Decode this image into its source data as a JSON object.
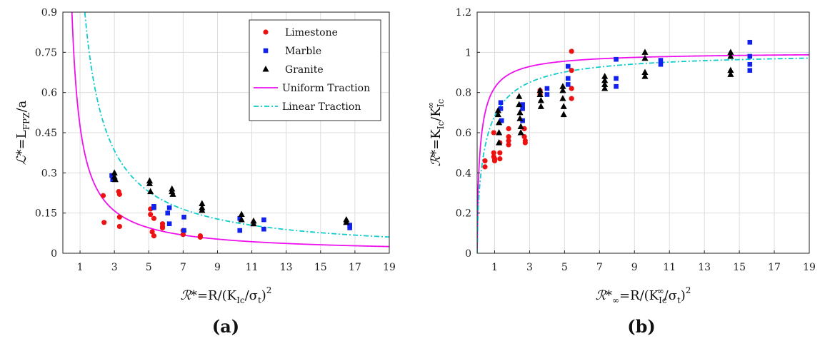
{
  "colors": {
    "limestone": "#ee1111",
    "marble": "#1122ee",
    "granite": "#000000",
    "uniform": "#ee11ee",
    "linear": "#11cccc"
  },
  "chart_data": [
    {
      "type": "scatter",
      "panel_label": "(a)",
      "xlabel": {
        "symbol": "ℛ*",
        "text": "=R/(K",
        "sub": "Ic",
        "text2": "/σ",
        "sub2": "t",
        "text3": ")",
        "sup": "2"
      },
      "ylabel": {
        "symbol": "ℒ*",
        "text": "=L",
        "sub": "FPZ",
        "text2": "/a"
      },
      "xlim": [
        0,
        19
      ],
      "ylim": [
        0,
        0.9
      ],
      "xticks": [
        1,
        3,
        5,
        7,
        9,
        11,
        13,
        15,
        17,
        19
      ],
      "yticks": [
        0,
        0.15,
        0.3,
        0.45,
        0.6,
        0.75,
        0.9
      ],
      "ytick_labels": [
        "0",
        "0.15",
        "0.3",
        "0.45",
        "0.6",
        "0.75",
        "0.9"
      ],
      "grid": true,
      "legend": {
        "placement": "top-right",
        "entries": [
          "Limestone",
          "Marble",
          "Granite",
          "Uniform Traction",
          "Linear Traction"
        ]
      },
      "series": [
        {
          "name": "Limestone",
          "marker": "circle",
          "color_key": "limestone",
          "x": [
            2.35,
            2.4,
            3.25,
            3.3,
            3.3,
            3.3,
            5.1,
            5.1,
            5.2,
            5.3,
            5.3,
            5.8,
            5.8,
            5.8,
            7.0,
            7.0,
            8.0,
            8.0
          ],
          "y": [
            0.215,
            0.115,
            0.23,
            0.22,
            0.135,
            0.1,
            0.165,
            0.145,
            0.08,
            0.13,
            0.065,
            0.11,
            0.1,
            0.095,
            0.085,
            0.07,
            0.065,
            0.06
          ]
        },
        {
          "name": "Marble",
          "marker": "square",
          "color_key": "marble",
          "x": [
            2.85,
            2.9,
            5.3,
            5.3,
            6.1,
            6.2,
            6.2,
            7.05,
            7.05,
            10.3,
            10.3,
            11.7,
            11.7,
            16.7,
            16.7
          ],
          "y": [
            0.29,
            0.275,
            0.175,
            0.17,
            0.15,
            0.17,
            0.11,
            0.135,
            0.085,
            0.13,
            0.085,
            0.125,
            0.09,
            0.105,
            0.095
          ]
        },
        {
          "name": "Granite",
          "marker": "triangle",
          "color_key": "granite",
          "x": [
            3.0,
            3.0,
            3.05,
            5.05,
            5.05,
            5.1,
            6.35,
            6.35,
            6.4,
            8.1,
            8.1,
            8.1,
            10.4,
            10.4,
            11.1,
            11.1,
            16.5,
            16.5
          ],
          "y": [
            0.3,
            0.285,
            0.275,
            0.27,
            0.26,
            0.23,
            0.24,
            0.23,
            0.22,
            0.185,
            0.17,
            0.16,
            0.145,
            0.125,
            0.12,
            0.11,
            0.125,
            0.115
          ]
        }
      ],
      "curves": [
        {
          "name": "Uniform Traction",
          "style": "solid",
          "color_key": "uniform",
          "function": "0.475/x",
          "x_from": 0.52,
          "x_to": 19
        },
        {
          "name": "Linear Traction",
          "style": "dashdot",
          "color_key": "linear",
          "function": "1.15/x",
          "x_from": 1.28,
          "x_to": 19
        }
      ]
    },
    {
      "type": "scatter",
      "panel_label": "(b)",
      "xlabel": {
        "symbol": "ℛ*",
        "sub0": "∞",
        "text": "=R/(K",
        "sub": "Ic",
        "sup_inner": "∞",
        "text2": "/σ",
        "sub2": "t",
        "text3": ")",
        "sup": "2"
      },
      "ylabel": {
        "symbol": "ℛ*",
        "text": "=K",
        "sub": "Ic",
        "text2": "/K",
        "sub2": "Ic",
        "sup2": "∞"
      },
      "xlim": [
        0,
        19
      ],
      "ylim": [
        0,
        1.2
      ],
      "xticks": [
        1,
        3,
        5,
        7,
        9,
        11,
        13,
        15,
        17,
        19
      ],
      "yticks": [
        0,
        0.2,
        0.4,
        0.6,
        0.8,
        1.0,
        1.2
      ],
      "ytick_labels": [
        "0",
        "0.2",
        "0.4",
        "0.6",
        "0.8",
        "1",
        "1.2"
      ],
      "grid": true,
      "series": [
        {
          "name": "Limestone",
          "marker": "circle",
          "color_key": "limestone",
          "x": [
            0.45,
            0.45,
            0.95,
            0.95,
            0.95,
            1.0,
            1.0,
            1.3,
            1.3,
            1.3,
            1.8,
            1.8,
            1.8,
            1.8,
            2.7,
            2.7,
            2.75,
            2.75,
            3.6,
            3.6,
            5.4,
            5.4,
            5.4,
            5.4
          ],
          "y": [
            0.46,
            0.43,
            0.6,
            0.5,
            0.48,
            0.47,
            0.46,
            0.55,
            0.5,
            0.47,
            0.62,
            0.58,
            0.56,
            0.54,
            0.62,
            0.58,
            0.56,
            0.55,
            0.81,
            0.79,
            1.005,
            0.91,
            0.82,
            0.77
          ]
        },
        {
          "name": "Marble",
          "marker": "square",
          "color_key": "marble",
          "x": [
            1.35,
            1.35,
            1.4,
            2.6,
            2.6,
            2.6,
            4.0,
            4.0,
            5.2,
            5.2,
            5.2,
            7.95,
            7.95,
            7.95,
            10.5,
            10.5,
            15.6,
            15.6,
            15.6,
            15.6
          ],
          "y": [
            0.75,
            0.72,
            0.66,
            0.74,
            0.72,
            0.66,
            0.82,
            0.79,
            0.93,
            0.87,
            0.84,
            0.965,
            0.87,
            0.83,
            0.96,
            0.94,
            1.05,
            0.98,
            0.94,
            0.91
          ]
        },
        {
          "name": "Granite",
          "marker": "triangle",
          "color_key": "granite",
          "x": [
            1.2,
            1.2,
            1.25,
            1.25,
            1.25,
            2.4,
            2.4,
            2.45,
            2.45,
            2.5,
            2.5,
            3.6,
            3.6,
            3.65,
            3.65,
            4.9,
            4.9,
            4.9,
            4.95,
            4.95,
            7.3,
            7.3,
            7.3,
            7.3,
            9.6,
            9.6,
            9.6,
            9.6,
            14.5,
            14.5,
            14.5,
            14.5
          ],
          "y": [
            0.71,
            0.69,
            0.65,
            0.6,
            0.55,
            0.78,
            0.74,
            0.7,
            0.67,
            0.63,
            0.6,
            0.81,
            0.79,
            0.76,
            0.73,
            0.83,
            0.81,
            0.77,
            0.73,
            0.69,
            0.88,
            0.86,
            0.84,
            0.82,
            1.0,
            0.97,
            0.9,
            0.88,
            1.0,
            0.98,
            0.91,
            0.89
          ]
        }
      ],
      "curves": [
        {
          "name": "Uniform Traction",
          "style": "solid",
          "color_key": "uniform",
          "function": "sqrt(x/(x+0.475))",
          "x_from": 0.0,
          "x_to": 19
        },
        {
          "name": "Linear Traction",
          "style": "dashdot",
          "color_key": "linear",
          "function": "sqrt(x/(x+1.15))",
          "x_from": 0.0,
          "x_to": 19
        }
      ]
    }
  ]
}
